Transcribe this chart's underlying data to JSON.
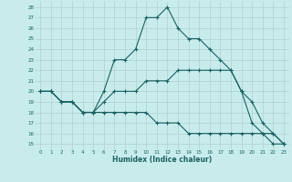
{
  "xlabel": "Humidex (Indice chaleur)",
  "background_color": "#c8ecec",
  "grid_color": "#b0d0d0",
  "line_color": "#1a6060",
  "xlim": [
    -0.5,
    23.5
  ],
  "ylim": [
    14.5,
    28.5
  ],
  "xticks": [
    0,
    1,
    2,
    3,
    4,
    5,
    6,
    7,
    8,
    9,
    10,
    11,
    12,
    13,
    14,
    15,
    16,
    17,
    18,
    19,
    20,
    21,
    22,
    23
  ],
  "yticks": [
    15,
    16,
    17,
    18,
    19,
    20,
    21,
    22,
    23,
    24,
    25,
    26,
    27,
    28
  ],
  "curve1_x": [
    0,
    1,
    2,
    3,
    4,
    5,
    6,
    7,
    8,
    9,
    10,
    11,
    12,
    13,
    14,
    15,
    16,
    17,
    18,
    19,
    20,
    21,
    22,
    23
  ],
  "curve1_y": [
    20,
    20,
    19,
    19,
    18,
    18,
    20,
    23,
    23,
    24,
    27,
    27,
    28,
    26,
    25,
    25,
    24,
    23,
    22,
    20,
    17,
    16,
    15,
    15
  ],
  "curve2_x": [
    0,
    1,
    2,
    3,
    4,
    5,
    6,
    7,
    8,
    9,
    10,
    11,
    12,
    13,
    14,
    15,
    16,
    17,
    18,
    19,
    20,
    21,
    22,
    23
  ],
  "curve2_y": [
    20,
    20,
    19,
    19,
    18,
    18,
    19,
    20,
    20,
    20,
    21,
    21,
    21,
    22,
    22,
    22,
    22,
    22,
    22,
    20,
    19,
    17,
    16,
    15
  ],
  "curve3_x": [
    0,
    1,
    2,
    3,
    4,
    5,
    6,
    7,
    8,
    9,
    10,
    11,
    12,
    13,
    14,
    15,
    16,
    17,
    18,
    19,
    20,
    21,
    22,
    23
  ],
  "curve3_y": [
    20,
    20,
    19,
    19,
    18,
    18,
    18,
    18,
    18,
    18,
    18,
    17,
    17,
    17,
    16,
    16,
    16,
    16,
    16,
    16,
    16,
    16,
    16,
    15
  ]
}
